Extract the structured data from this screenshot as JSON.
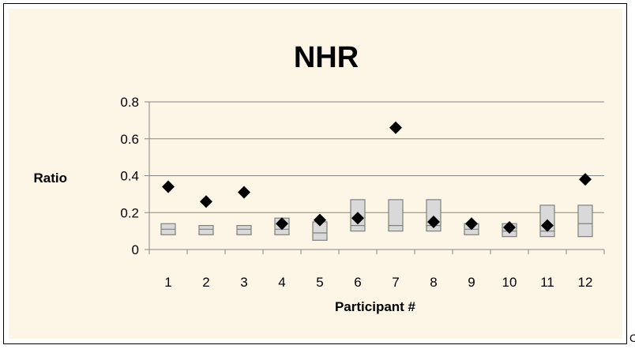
{
  "corner_mark": "C",
  "colors": {
    "chart_area": "#FDF5E6",
    "chart_border": "#000000",
    "gridline": "#868686",
    "box_fill": "#D9D9D9",
    "box_stroke": "#7F7F7F",
    "marker": "#000000",
    "text": "#000000"
  },
  "chart_data": {
    "type": "scatter",
    "title": "NHR",
    "xlabel": "Participant #",
    "ylabel": "Ratio",
    "categories": [
      "1",
      "2",
      "3",
      "4",
      "5",
      "6",
      "7",
      "8",
      "9",
      "10",
      "11",
      "12"
    ],
    "yticks": [
      "0",
      "0.2",
      "0.4",
      "0.6",
      "0.8"
    ],
    "ylim": [
      0,
      0.8
    ],
    "grid": true,
    "legend": "none",
    "marker": "diamond",
    "values": [
      0.34,
      0.26,
      0.31,
      0.14,
      0.16,
      0.17,
      0.66,
      0.15,
      0.14,
      0.12,
      0.13,
      0.38
    ],
    "boxes": {
      "low": [
        0.08,
        0.08,
        0.08,
        0.08,
        0.05,
        0.1,
        0.1,
        0.1,
        0.08,
        0.07,
        0.07,
        0.07
      ],
      "mid": [
        0.11,
        0.11,
        0.11,
        0.11,
        0.09,
        0.13,
        0.13,
        0.13,
        0.11,
        0.1,
        0.1,
        0.14
      ],
      "high": [
        0.14,
        0.13,
        0.13,
        0.17,
        0.15,
        0.27,
        0.27,
        0.27,
        0.14,
        0.14,
        0.24,
        0.24
      ]
    }
  }
}
